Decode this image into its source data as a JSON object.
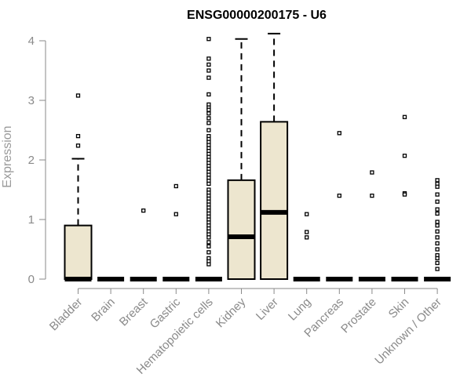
{
  "chart_data": {
    "type": "box",
    "title": "ENSG00000200175 - U6",
    "ylabel": "Expression",
    "xlabel": "",
    "ylim": [
      0,
      4.1
    ],
    "yticks": [
      0,
      1,
      2,
      3,
      4
    ],
    "box_fill": "#ede6cf",
    "grid": false,
    "categories": [
      "Bladder",
      "Brain",
      "Breast",
      "Gastric",
      "Hematopoietic cells",
      "Kidney",
      "Liver",
      "Lung",
      "Pancreas",
      "Prostate",
      "Skin",
      "Unknown / Other"
    ],
    "boxes": [
      {
        "q1": 0,
        "median": 0,
        "q3": 0.9,
        "whisker_low": 0,
        "whisker_high": 2.02,
        "outliers": [
          3.08,
          2.4,
          2.24
        ]
      },
      {
        "q1": 0,
        "median": 0,
        "q3": 0,
        "whisker_low": 0,
        "whisker_high": 0,
        "outliers": []
      },
      {
        "q1": 0,
        "median": 0,
        "q3": 0,
        "whisker_low": 0,
        "whisker_high": 0,
        "outliers": [
          1.15
        ]
      },
      {
        "q1": 0,
        "median": 0,
        "q3": 0,
        "whisker_low": 0,
        "whisker_high": 0,
        "outliers": [
          1.56,
          1.09
        ]
      },
      {
        "q1": 0,
        "median": 0,
        "q3": 0,
        "whisker_low": 0,
        "whisker_high": 0,
        "outliers": [
          4.03,
          3.7,
          3.6,
          3.5,
          3.38,
          3.1,
          2.93,
          2.88,
          2.84,
          2.78,
          2.7,
          2.62,
          2.5,
          2.4,
          2.35,
          2.3,
          2.25,
          2.2,
          2.15,
          2.1,
          2.05,
          2.0,
          1.95,
          1.9,
          1.85,
          1.8,
          1.75,
          1.7,
          1.65,
          1.6,
          1.5,
          1.45,
          1.4,
          1.35,
          1.3,
          1.25,
          1.2,
          1.15,
          1.1,
          1.05,
          1.0,
          0.95,
          0.9,
          0.85,
          0.8,
          0.75,
          0.7,
          0.62,
          0.55,
          0.45,
          0.35,
          0.3,
          0.25
        ]
      },
      {
        "q1": 0,
        "median": 0.71,
        "q3": 1.66,
        "whisker_low": 0,
        "whisker_high": 4.03,
        "outliers": []
      },
      {
        "q1": 0,
        "median": 1.12,
        "q3": 2.64,
        "whisker_low": 0,
        "whisker_high": 4.12,
        "outliers": []
      },
      {
        "q1": 0,
        "median": 0,
        "q3": 0,
        "whisker_low": 0,
        "whisker_high": 0,
        "outliers": [
          1.09,
          0.79,
          0.7
        ]
      },
      {
        "q1": 0,
        "median": 0,
        "q3": 0,
        "whisker_low": 0,
        "whisker_high": 0,
        "outliers": [
          2.45,
          1.4
        ]
      },
      {
        "q1": 0,
        "median": 0,
        "q3": 0,
        "whisker_low": 0,
        "whisker_high": 0,
        "outliers": [
          1.79,
          1.4
        ]
      },
      {
        "q1": 0,
        "median": 0,
        "q3": 0,
        "whisker_low": 0,
        "whisker_high": 0,
        "outliers": [
          2.72,
          2.07,
          1.44,
          1.42
        ]
      },
      {
        "q1": 0,
        "median": 0,
        "q3": 0,
        "whisker_low": 0,
        "whisker_high": 0,
        "outliers": [
          1.66,
          1.6,
          1.55,
          1.42,
          1.3,
          1.17,
          1.1,
          0.96,
          0.9,
          0.8,
          0.7,
          0.6,
          0.5,
          0.4,
          0.35,
          0.27,
          0.17
        ]
      }
    ]
  }
}
